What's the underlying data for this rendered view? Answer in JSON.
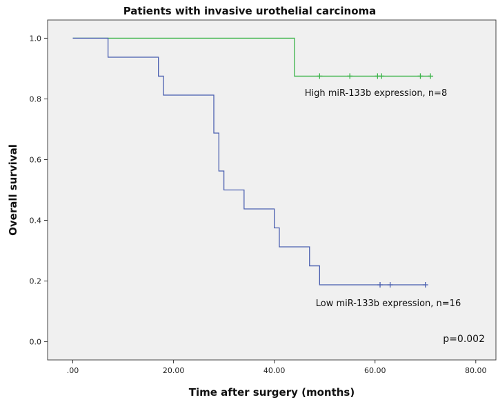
{
  "chart_data": {
    "type": "line",
    "step": true,
    "title": "Patients with invasive urothelial carcinoma",
    "xlabel": "Time after surgery (months)",
    "ylabel": "Overall survival",
    "xlim": [
      -5,
      84
    ],
    "ylim": [
      -0.06,
      1.06
    ],
    "xticks": [
      0,
      20,
      40,
      60,
      80
    ],
    "xtick_labels": [
      ".00",
      "20.00",
      "40.00",
      "60.00",
      "80.00"
    ],
    "yticks": [
      0,
      0.2,
      0.4,
      0.6,
      0.8,
      1.0
    ],
    "ytick_labels": [
      "0.0",
      "0.2",
      "0.4",
      "0.6",
      "0.8",
      "1.0"
    ],
    "grid": false,
    "background_color": "#f0f0f0",
    "series": [
      {
        "name": "High miR-133b expression, n=8",
        "color": "#3cb44a",
        "steps": [
          [
            0,
            1.0
          ],
          [
            44,
            0.875
          ],
          [
            71,
            0.875
          ]
        ],
        "censored": [
          [
            49,
            0.875
          ],
          [
            55,
            0.875
          ],
          [
            60.5,
            0.875
          ],
          [
            61.3,
            0.875
          ],
          [
            69,
            0.875
          ],
          [
            71,
            0.875
          ]
        ]
      },
      {
        "name": "Low miR-133b expression, n=16",
        "color": "#4a5fb0",
        "steps": [
          [
            0,
            1.0
          ],
          [
            7,
            0.9375
          ],
          [
            17,
            0.875
          ],
          [
            18,
            0.8125
          ],
          [
            28,
            0.6875
          ],
          [
            29,
            0.5625
          ],
          [
            30,
            0.5
          ],
          [
            34,
            0.4375
          ],
          [
            40,
            0.375
          ],
          [
            41,
            0.3125
          ],
          [
            47,
            0.25
          ],
          [
            49,
            0.1875
          ],
          [
            70,
            0.1875
          ]
        ],
        "censored": [
          [
            61,
            0.1875
          ],
          [
            63,
            0.1875
          ],
          [
            70,
            0.1875
          ]
        ]
      }
    ],
    "annotations": [
      {
        "text": "p=0.002",
        "x": 78,
        "y": -0.01
      }
    ]
  }
}
